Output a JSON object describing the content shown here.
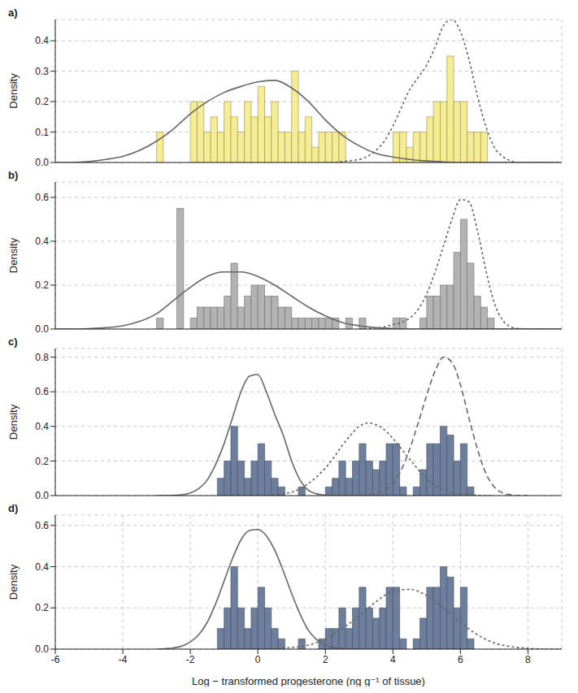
{
  "chart_data": [
    {
      "type": "histogram",
      "title": "a)",
      "ylabel": "Density",
      "xlim": [
        -6,
        9
      ],
      "xticks": [
        -6,
        -4,
        -2,
        0,
        2,
        4,
        6,
        8
      ],
      "ylim": [
        0,
        0.47
      ],
      "yticks": [
        {
          "value": 0,
          "label": "0.0"
        },
        {
          "value": 0.1,
          "label": "0.1"
        },
        {
          "value": 0.2,
          "label": "0.2"
        },
        {
          "value": 0.3,
          "label": "0.3"
        },
        {
          "value": 0.4,
          "label": "0.4"
        }
      ],
      "grid": true,
      "tick_labels": "y",
      "color": "#f5ec94",
      "bins": [
        -3.0,
        -2.8,
        -2.6,
        -2.4,
        -2.2,
        -2.0,
        -1.8,
        -1.6,
        -1.4,
        -1.2,
        -1.0,
        -0.8,
        -0.6,
        -0.4,
        -0.2,
        0,
        0.2,
        0.4,
        0.6,
        0.8,
        1.0,
        1.2,
        1.4,
        1.6,
        1.8,
        2.0,
        2.2,
        2.4,
        2.6,
        2.8,
        3.0,
        3.2,
        3.4,
        3.6,
        3.8,
        4.0,
        4.2,
        4.4,
        4.6,
        4.8,
        5.0,
        5.2,
        5.4,
        5.6,
        5.8,
        6.0,
        6.2,
        6.4,
        6.6,
        6.8,
        7.0,
        7.2
      ],
      "values": [
        0.1,
        0,
        0,
        0,
        0,
        0.2,
        0.2,
        0.1,
        0.15,
        0.1,
        0.2,
        0.15,
        0.1,
        0.2,
        0.15,
        0.25,
        0.15,
        0.2,
        0.1,
        0.1,
        0.3,
        0.1,
        0.15,
        0.05,
        0.1,
        0.1,
        0.1,
        0.1,
        0,
        0,
        0,
        0,
        0,
        0,
        0,
        0.1,
        0.1,
        0.05,
        0.1,
        0.1,
        0.15,
        0.2,
        0.2,
        0.35,
        0.2,
        0.2,
        0.1,
        0.1,
        0.1,
        0,
        0
      ],
      "series": [
        {
          "type": "line",
          "line_style": "solid",
          "color": "#666666",
          "x": [
            -6,
            -5.5,
            -5,
            -4.5,
            -4,
            -3.5,
            -3,
            -2.5,
            -2,
            -1.5,
            -1,
            -0.5,
            0,
            0.5,
            1,
            1.5,
            2,
            2.5,
            3,
            3.5,
            4,
            4.5,
            5,
            5.5,
            6,
            6.5,
            7,
            7.5,
            8,
            8.5,
            9
          ],
          "values": [
            0,
            0,
            0.003,
            0.01,
            0.02,
            0.04,
            0.07,
            0.11,
            0.16,
            0.2,
            0.23,
            0.25,
            0.265,
            0.27,
            0.245,
            0.2,
            0.14,
            0.09,
            0.055,
            0.03,
            0.018,
            0.01,
            0.005,
            0.002,
            0,
            0,
            0,
            0,
            0,
            0,
            0
          ]
        },
        {
          "type": "line",
          "line_style": "dotted",
          "color": "#666666",
          "x": [
            2,
            2.25,
            2.5,
            2.75,
            3,
            3.25,
            3.5,
            3.75,
            4,
            4.25,
            4.5,
            4.75,
            5,
            5.25,
            5.5,
            5.75,
            6,
            6.25,
            6.5,
            6.75,
            7,
            7.25,
            7.5,
            7.75,
            8,
            8.25,
            8.5,
            8.75,
            9
          ],
          "values": [
            0,
            0,
            0.003,
            0.006,
            0.01,
            0.02,
            0.04,
            0.07,
            0.12,
            0.18,
            0.24,
            0.28,
            0.32,
            0.38,
            0.45,
            0.47,
            0.43,
            0.34,
            0.22,
            0.12,
            0.05,
            0.02,
            0.005,
            0,
            0,
            0,
            0,
            0,
            0
          ]
        }
      ]
    },
    {
      "type": "histogram",
      "title": "b)",
      "ylabel": "Density",
      "xlim": [
        -6,
        9
      ],
      "xticks": [
        -6,
        -4,
        -2,
        0,
        2,
        4,
        6,
        8
      ],
      "ylim": [
        0,
        0.67
      ],
      "yticks": [
        {
          "value": 0,
          "label": "0.0"
        },
        {
          "value": 0.2,
          "label": "0.2"
        },
        {
          "value": 0.4,
          "label": "0.4"
        },
        {
          "value": 0.6,
          "label": "0.6"
        }
      ],
      "grid": true,
      "tick_labels": "y",
      "color": "#b3b3b3",
      "bins": [
        -3.0,
        -2.8,
        -2.6,
        -2.4,
        -2.2,
        -2.0,
        -1.8,
        -1.6,
        -1.4,
        -1.2,
        -1.0,
        -0.8,
        -0.6,
        -0.4,
        -0.2,
        0,
        0.2,
        0.4,
        0.6,
        0.8,
        1.0,
        1.2,
        1.4,
        1.6,
        1.8,
        2.0,
        2.2,
        2.4,
        2.6,
        2.8,
        3.0,
        3.2,
        3.4,
        3.6,
        3.8,
        4.0,
        4.2,
        4.4,
        4.6,
        4.8,
        5.0,
        5.2,
        5.4,
        5.6,
        5.8,
        6.0,
        6.2,
        6.4,
        6.6,
        6.8,
        7.0,
        7.2
      ],
      "values": [
        0.05,
        0,
        0,
        0.55,
        0,
        0.05,
        0.1,
        0.1,
        0.1,
        0.1,
        0.15,
        0.3,
        0.1,
        0.15,
        0.2,
        0.2,
        0.15,
        0.15,
        0.1,
        0.1,
        0.05,
        0.05,
        0.05,
        0.05,
        0.05,
        0.05,
        0.05,
        0,
        0.05,
        0,
        0.05,
        0,
        0,
        0,
        0,
        0.05,
        0.05,
        0,
        0,
        0.05,
        0.15,
        0.15,
        0.2,
        0.2,
        0.35,
        0.5,
        0.3,
        0.15,
        0.1,
        0.05,
        0
      ],
      "series": [
        {
          "type": "line",
          "line_style": "solid",
          "color": "#666666",
          "x": [
            -6,
            -5.5,
            -5,
            -4.5,
            -4,
            -3.5,
            -3,
            -2.5,
            -2,
            -1.5,
            -1,
            -0.5,
            0,
            0.5,
            1,
            1.5,
            2,
            2.5,
            3,
            3.5,
            4,
            4.5,
            5,
            5.5,
            6,
            6.5,
            7,
            7.5,
            8,
            8.5,
            9
          ],
          "values": [
            0,
            0,
            0.002,
            0.006,
            0.015,
            0.035,
            0.07,
            0.13,
            0.19,
            0.24,
            0.26,
            0.26,
            0.24,
            0.2,
            0.15,
            0.1,
            0.06,
            0.03,
            0.015,
            0.006,
            0.002,
            0,
            0,
            0,
            0,
            0,
            0,
            0,
            0,
            0,
            0
          ]
        },
        {
          "type": "line",
          "line_style": "dotted",
          "color": "#666666",
          "x": [
            3,
            3.25,
            3.5,
            3.75,
            4,
            4.25,
            4.5,
            4.75,
            5,
            5.25,
            5.5,
            5.75,
            6,
            6.25,
            6.5,
            6.75,
            7,
            7.25,
            7.5,
            7.75,
            8,
            8.25,
            8.5,
            8.75,
            9
          ],
          "values": [
            0,
            0.002,
            0.005,
            0.01,
            0.02,
            0.03,
            0.05,
            0.09,
            0.16,
            0.26,
            0.38,
            0.5,
            0.59,
            0.58,
            0.45,
            0.27,
            0.12,
            0.04,
            0.01,
            0.002,
            0,
            0,
            0,
            0,
            0
          ]
        }
      ]
    },
    {
      "type": "histogram",
      "title": "c)",
      "ylabel": "Density",
      "xlim": [
        -6,
        9
      ],
      "xticks": [
        -6,
        -4,
        -2,
        0,
        2,
        4,
        6,
        8
      ],
      "ylim": [
        0,
        0.85
      ],
      "yticks": [
        {
          "value": 0,
          "label": "0.0"
        },
        {
          "value": 0.2,
          "label": "0.2"
        },
        {
          "value": 0.4,
          "label": "0.4"
        },
        {
          "value": 0.6,
          "label": "0.6"
        },
        {
          "value": 0.8,
          "label": "0.8"
        }
      ],
      "grid": true,
      "tick_labels": "y",
      "color": "#6e7f9e",
      "bins": [
        -3.0,
        -2.8,
        -2.6,
        -2.4,
        -2.2,
        -2.0,
        -1.8,
        -1.6,
        -1.4,
        -1.2,
        -1.0,
        -0.8,
        -0.6,
        -0.4,
        -0.2,
        0,
        0.2,
        0.4,
        0.6,
        0.8,
        1.0,
        1.2,
        1.4,
        1.6,
        1.8,
        2.0,
        2.2,
        2.4,
        2.6,
        2.8,
        3.0,
        3.2,
        3.4,
        3.6,
        3.8,
        4.0,
        4.2,
        4.4,
        4.6,
        4.8,
        5.0,
        5.2,
        5.4,
        5.6,
        5.8,
        6.0,
        6.2,
        6.4,
        6.6,
        6.8,
        7.0,
        7.2
      ],
      "values": [
        0,
        0,
        0,
        0,
        0,
        0,
        0,
        0,
        0,
        0.1,
        0.2,
        0.4,
        0.2,
        0.1,
        0.2,
        0.3,
        0.2,
        0.1,
        0.05,
        0,
        0,
        0.05,
        0,
        0,
        0,
        0.05,
        0.1,
        0.2,
        0.1,
        0.2,
        0.3,
        0.2,
        0.15,
        0.2,
        0.3,
        0.3,
        0.05,
        0,
        0.05,
        0.15,
        0.3,
        0.3,
        0.4,
        0.35,
        0.2,
        0.3,
        0.05,
        0,
        0,
        0,
        0
      ],
      "series": [
        {
          "type": "line",
          "line_style": "solid",
          "color": "#666666",
          "x": [
            -3,
            -2.75,
            -2.5,
            -2.25,
            -2,
            -1.75,
            -1.5,
            -1.25,
            -1,
            -0.75,
            -0.5,
            -0.25,
            0,
            0.25,
            0.5,
            0.75,
            1,
            1.25,
            1.5,
            1.75,
            2,
            2.25,
            2.5,
            2.75,
            3
          ],
          "values": [
            0,
            0,
            0.002,
            0.005,
            0.015,
            0.04,
            0.09,
            0.18,
            0.3,
            0.45,
            0.6,
            0.69,
            0.7,
            0.6,
            0.47,
            0.35,
            0.2,
            0.09,
            0.03,
            0.01,
            0.003,
            0,
            0,
            0,
            0
          ]
        },
        {
          "type": "line",
          "line_style": "dotted",
          "color": "#666666",
          "x": [
            0,
            0.25,
            0.5,
            0.75,
            1,
            1.25,
            1.5,
            1.75,
            2,
            2.25,
            2.5,
            2.75,
            3,
            3.25,
            3.5,
            3.75,
            4,
            4.25,
            4.5,
            4.75,
            5,
            5.25,
            5.5,
            5.75,
            6,
            6.25,
            6.5,
            6.75,
            7
          ],
          "values": [
            0,
            0.002,
            0.005,
            0.01,
            0.02,
            0.04,
            0.07,
            0.11,
            0.16,
            0.22,
            0.29,
            0.35,
            0.4,
            0.42,
            0.41,
            0.38,
            0.33,
            0.27,
            0.21,
            0.15,
            0.1,
            0.06,
            0.035,
            0.02,
            0.01,
            0.005,
            0.002,
            0,
            0
          ]
        },
        {
          "type": "line",
          "line_style": "dashed",
          "color": "#666666",
          "x": [
            3,
            3.25,
            3.5,
            3.75,
            4,
            4.25,
            4.5,
            4.75,
            5,
            5.25,
            5.5,
            5.75,
            6,
            6.25,
            6.5,
            6.75,
            7,
            7.25,
            7.5,
            7.75,
            8
          ],
          "values": [
            0,
            0.003,
            0.01,
            0.03,
            0.07,
            0.15,
            0.27,
            0.42,
            0.58,
            0.72,
            0.8,
            0.77,
            0.64,
            0.45,
            0.27,
            0.13,
            0.05,
            0.015,
            0.004,
            0,
            0
          ]
        }
      ]
    },
    {
      "type": "histogram",
      "title": "d)",
      "ylabel": "Density",
      "xlabel": "Log − transformed progesterone (ng g⁻¹ of tissue)",
      "xlim": [
        -6,
        9
      ],
      "xticks": [
        -6,
        -4,
        -2,
        0,
        2,
        4,
        6,
        8
      ],
      "ylim": [
        0,
        0.65
      ],
      "yticks": [
        {
          "value": 0,
          "label": "0.0"
        },
        {
          "value": 0.2,
          "label": "0.2"
        },
        {
          "value": 0.4,
          "label": "0.4"
        },
        {
          "value": 0.6,
          "label": "0.6"
        }
      ],
      "grid": true,
      "color": "#6e7f9e",
      "bins": [
        -3.0,
        -2.8,
        -2.6,
        -2.4,
        -2.2,
        -2.0,
        -1.8,
        -1.6,
        -1.4,
        -1.2,
        -1.0,
        -0.8,
        -0.6,
        -0.4,
        -0.2,
        0,
        0.2,
        0.4,
        0.6,
        0.8,
        1.0,
        1.2,
        1.4,
        1.6,
        1.8,
        2.0,
        2.2,
        2.4,
        2.6,
        2.8,
        3.0,
        3.2,
        3.4,
        3.6,
        3.8,
        4.0,
        4.2,
        4.4,
        4.6,
        4.8,
        5.0,
        5.2,
        5.4,
        5.6,
        5.8,
        6.0,
        6.2,
        6.4,
        6.6,
        6.8,
        7.0,
        7.2
      ],
      "values": [
        0,
        0,
        0,
        0,
        0,
        0,
        0,
        0,
        0,
        0.1,
        0.2,
        0.4,
        0.2,
        0.1,
        0.2,
        0.3,
        0.2,
        0.1,
        0.05,
        0,
        0,
        0.05,
        0,
        0,
        0.05,
        0.1,
        0.1,
        0.2,
        0.1,
        0.2,
        0.3,
        0.2,
        0.15,
        0.2,
        0.3,
        0.3,
        0.05,
        0,
        0.05,
        0.15,
        0.3,
        0.3,
        0.4,
        0.35,
        0.2,
        0.3,
        0.05,
        0,
        0,
        0,
        0
      ],
      "series": [
        {
          "type": "line",
          "line_style": "solid",
          "color": "#666666",
          "x": [
            -3,
            -2.75,
            -2.5,
            -2.25,
            -2,
            -1.75,
            -1.5,
            -1.25,
            -1,
            -0.75,
            -0.5,
            -0.25,
            0,
            0.25,
            0.5,
            0.75,
            1,
            1.25,
            1.5,
            1.75,
            2,
            2.25,
            2.5,
            2.75,
            3
          ],
          "values": [
            0,
            0.002,
            0.006,
            0.015,
            0.035,
            0.07,
            0.13,
            0.22,
            0.33,
            0.44,
            0.53,
            0.575,
            0.58,
            0.55,
            0.48,
            0.38,
            0.27,
            0.17,
            0.09,
            0.045,
            0.02,
            0.008,
            0.003,
            0,
            0
          ]
        },
        {
          "type": "line",
          "line_style": "dotted",
          "color": "#666666",
          "x": [
            0,
            0.5,
            1,
            1.5,
            2,
            2.5,
            3,
            3.5,
            4,
            4.5,
            5,
            5.5,
            6,
            6.5,
            7,
            7.5,
            8,
            8.5,
            9
          ],
          "values": [
            0,
            0.003,
            0.008,
            0.02,
            0.05,
            0.1,
            0.16,
            0.23,
            0.28,
            0.29,
            0.26,
            0.2,
            0.13,
            0.07,
            0.03,
            0.012,
            0.004,
            0,
            0
          ]
        }
      ]
    }
  ]
}
